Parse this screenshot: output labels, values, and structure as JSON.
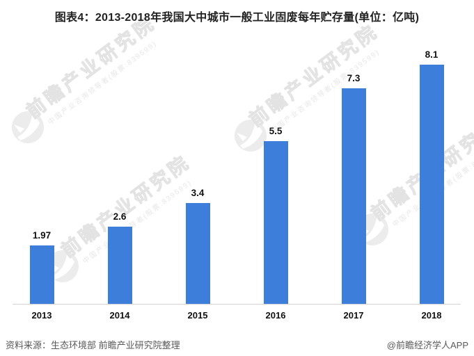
{
  "title": "图表4：2013-2018年我国大中城市一般工业固废每年贮存量(单位：亿吨)",
  "chart_data": {
    "type": "bar",
    "title": "图表4：2013-2018年我国大中城市一般工业固废每年贮存量(单位：亿吨)",
    "categories": [
      "2013",
      "2014",
      "2015",
      "2016",
      "2017",
      "2018"
    ],
    "values": [
      1.97,
      2.6,
      3.4,
      5.5,
      7.3,
      8.1
    ],
    "unit": "亿吨",
    "xlabel": "",
    "ylabel": "",
    "ylim": [
      0,
      8.6
    ],
    "grid": false,
    "legend": false,
    "y_axis_visible": false,
    "value_labels": true,
    "bar_color": "#3d7edb"
  },
  "footer": {
    "source": "资料来源：生态环境部 前瞻产业研究院整理",
    "credit": "@前瞻经济学人APP"
  },
  "watermark": {
    "brand": "前瞻产业研究院",
    "subtitle": "中国产业咨询领导者(股票:839599)"
  },
  "colors": {
    "bar": "#3d7edb",
    "axis_line": "#d2d2d2",
    "title_text": "#222222",
    "label_text": "#111111",
    "footer_text": "#595959",
    "watermark_stroke": "#e3e3e3",
    "watermark_logo": "#ececec"
  }
}
